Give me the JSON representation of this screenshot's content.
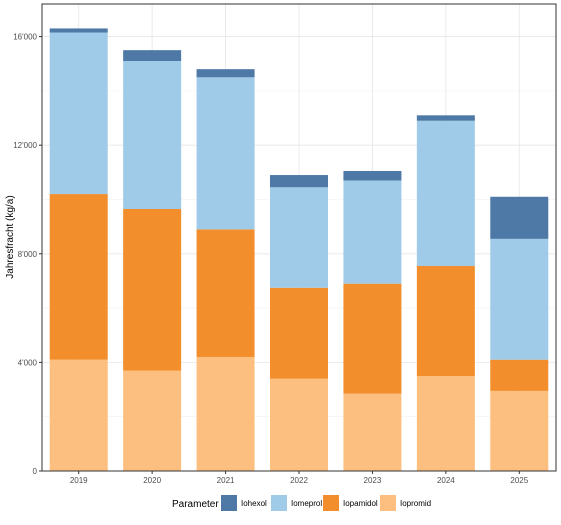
{
  "chart_data": {
    "type": "bar",
    "stacked": true,
    "categories": [
      "2019",
      "2020",
      "2021",
      "2022",
      "2023",
      "2024",
      "2025"
    ],
    "ylabel": "Jahresfracht (kg/a)",
    "xlabel": "",
    "ylim": [
      0,
      17200
    ],
    "yticks": [
      0,
      4000,
      8000,
      12000,
      16000
    ],
    "ytick_labels": [
      "0",
      "4'000",
      "8'000",
      "12'000",
      "16'000"
    ],
    "grid": true,
    "legend": {
      "title": "Parameter",
      "position": "bottom",
      "order": [
        "Iohexol",
        "Iomeprol",
        "Iopamidol",
        "Iopromid"
      ]
    },
    "series": [
      {
        "name": "Iopromid",
        "color": "#FDBF7F",
        "values": [
          4100,
          3700,
          4200,
          3400,
          2850,
          3500,
          2950
        ]
      },
      {
        "name": "Iopamidol",
        "color": "#F28E2B",
        "values": [
          6100,
          5950,
          4700,
          3350,
          4050,
          4050,
          1150
        ]
      },
      {
        "name": "Iomeprol",
        "color": "#A0CBE8",
        "values": [
          5950,
          5450,
          5600,
          3700,
          3800,
          5350,
          4450
        ]
      },
      {
        "name": "Iohexol",
        "color": "#4E79A7",
        "values": [
          150,
          400,
          300,
          450,
          350,
          200,
          1550
        ]
      }
    ]
  }
}
